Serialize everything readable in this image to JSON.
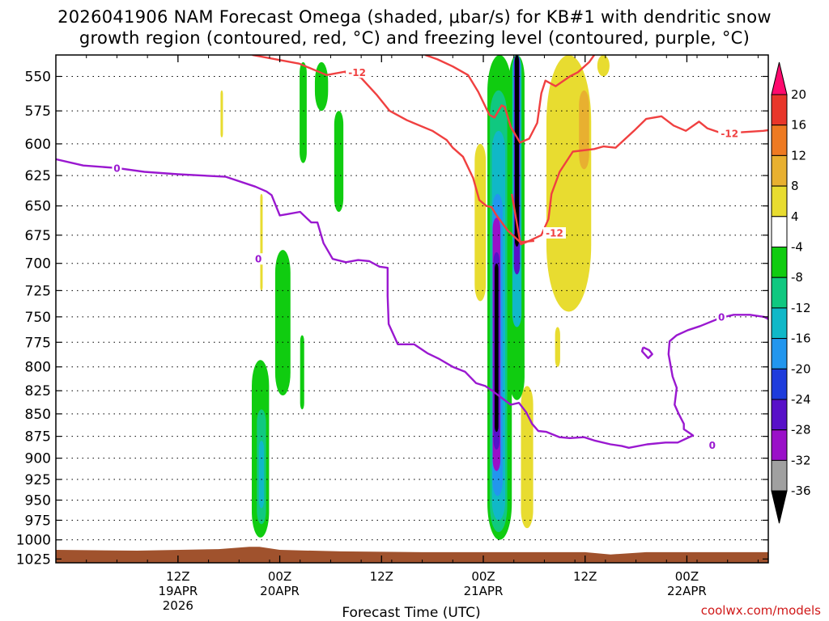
{
  "title": {
    "line1": "2026041906 NAM Forecast Omega (shaded, μbar/s) for KB#1 with dendritic snow",
    "line2": "growth region (contoured, red, °C) and freezing level (contoured, purple, °C)"
  },
  "credit": "coolwx.com/models",
  "chart_data": {
    "type": "heatmap",
    "title": "2026041906 NAM Forecast Omega (shaded, μbar/s) for KB#1 with dendritic snow growth region (contoured, red, °C) and freezing level (contoured, purple, °C)",
    "xlabel": "Forecast Time (UTC)",
    "ylabel": "",
    "x_range_hours": [
      -6,
      64
    ],
    "x_ticks": [
      {
        "hour": 6,
        "label": "12Z",
        "date": "19APR",
        "year": "2026"
      },
      {
        "hour": 16,
        "label": "00Z",
        "date": "20APR",
        "year": ""
      },
      {
        "hour": 26,
        "label": "12Z",
        "date": "",
        "year": ""
      },
      {
        "hour": 36,
        "label": "00Z",
        "date": "21APR",
        "year": ""
      },
      {
        "hour": 46,
        "label": "12Z",
        "date": "",
        "year": ""
      },
      {
        "hour": 56,
        "label": "00Z",
        "date": "22APR",
        "year": ""
      },
      {
        "hour": 66,
        "label": "12Z",
        "date": "",
        "year": ""
      }
    ],
    "x_minor_every_hours": 3,
    "y_range_mb": [
      1030,
      535
    ],
    "y_ticks": [
      550,
      575,
      600,
      625,
      650,
      675,
      700,
      725,
      750,
      775,
      800,
      825,
      850,
      875,
      900,
      925,
      950,
      975,
      1000,
      1025
    ],
    "colorbar": {
      "levels": [
        "20",
        "16",
        "12",
        "8",
        "4",
        "-4",
        "-8",
        "-12",
        "-16",
        "-20",
        "-24",
        "-28",
        "-32",
        "-36"
      ],
      "colors": [
        "#ff0a6e",
        "#e8362a",
        "#ee7a22",
        "#e8b030",
        "#e8dc30",
        "#ffffff",
        "#10cc10",
        "#10c880",
        "#10b8c8",
        "#2296ee",
        "#1e3cdc",
        "#5810c8",
        "#9a10c8",
        "#a0a0a0",
        "#000000"
      ]
    },
    "shading": [
      {
        "name": "ascent-a",
        "color": "#10cc10",
        "hour": 14.1,
        "p_top": 793,
        "p_bot": 997,
        "half_width_h": 0.85
      },
      {
        "name": "ascent-a-core",
        "color": "#10c880",
        "hour": 14.2,
        "p_top": 845,
        "p_bot": 980,
        "half_width_h": 0.45
      },
      {
        "name": "ascent-a-inner",
        "color": "#10b8c8",
        "hour": 14.2,
        "p_top": 880,
        "p_bot": 960,
        "half_width_h": 0.25
      },
      {
        "name": "ascent-b",
        "color": "#10cc10",
        "hour": 16.3,
        "p_top": 688,
        "p_bot": 830,
        "half_width_h": 0.75
      },
      {
        "name": "ascent-c",
        "color": "#10cc10",
        "hour": 18.2,
        "p_top": 768,
        "p_bot": 845,
        "half_width_h": 0.2
      },
      {
        "name": "ascent-d",
        "color": "#10cc10",
        "hour": 18.3,
        "p_top": 540,
        "p_bot": 615,
        "half_width_h": 0.35
      },
      {
        "name": "ascent-e",
        "color": "#10cc10",
        "hour": 20.1,
        "p_top": 540,
        "p_bot": 575,
        "half_width_h": 0.65
      },
      {
        "name": "ascent-f",
        "color": "#10cc10",
        "hour": 21.8,
        "p_top": 575,
        "p_bot": 655,
        "half_width_h": 0.45
      },
      {
        "name": "desc-g",
        "color": "#e8dc30",
        "hour": 10.3,
        "p_top": 560,
        "p_bot": 595,
        "half_width_h": 0.12
      },
      {
        "name": "desc-h",
        "color": "#e8dc30",
        "hour": 14.2,
        "p_top": 640,
        "p_bot": 725,
        "half_width_h": 0.12
      },
      {
        "name": "desc-i",
        "color": "#e8dc30",
        "hour": 35.7,
        "p_top": 600,
        "p_bot": 735,
        "half_width_h": 0.55
      },
      {
        "name": "desc-j",
        "color": "#e8dc30",
        "hour": 40.3,
        "p_top": 820,
        "p_bot": 985,
        "half_width_h": 0.6
      },
      {
        "name": "desc-k",
        "color": "#e8dc30",
        "hour": 43.3,
        "p_top": 760,
        "p_bot": 800,
        "half_width_h": 0.25
      },
      {
        "name": "desc-l",
        "color": "#e8dc30",
        "hour": 44.4,
        "p_top": 535,
        "p_bot": 745,
        "half_width_h": 2.2
      },
      {
        "name": "desc-m",
        "color": "#e8b030",
        "hour": 45.9,
        "p_top": 560,
        "p_bot": 620,
        "half_width_h": 0.5
      },
      {
        "name": "desc-n",
        "color": "#e8dc30",
        "hour": 47.8,
        "p_top": 535,
        "p_bot": 550,
        "half_width_h": 0.6
      },
      {
        "name": "core-green",
        "color": "#10cc10",
        "hour": 37.6,
        "p_top": 535,
        "p_bot": 1000,
        "half_width_h": 1.2
      },
      {
        "name": "core-teal",
        "color": "#10c880",
        "hour": 37.5,
        "p_top": 560,
        "p_bot": 990,
        "half_width_h": 0.85
      },
      {
        "name": "core-cyan",
        "color": "#10b8c8",
        "hour": 37.5,
        "p_top": 590,
        "p_bot": 975,
        "half_width_h": 0.65
      },
      {
        "name": "core-blue",
        "color": "#2296ee",
        "hour": 37.4,
        "p_top": 640,
        "p_bot": 945,
        "half_width_h": 0.5
      },
      {
        "name": "core-purple",
        "color": "#9a10c8",
        "hour": 37.3,
        "p_top": 660,
        "p_bot": 915,
        "half_width_h": 0.38
      },
      {
        "name": "core-violet",
        "color": "#5810c8",
        "hour": 37.3,
        "p_top": 690,
        "p_bot": 890,
        "half_width_h": 0.3
      },
      {
        "name": "core-black",
        "color": "#000000",
        "hour": 37.3,
        "p_top": 700,
        "p_bot": 870,
        "half_width_h": 0.18
      },
      {
        "name": "upper-green",
        "color": "#10cc10",
        "hour": 39.3,
        "p_top": 535,
        "p_bot": 835,
        "half_width_h": 0.75
      },
      {
        "name": "upper-cyan",
        "color": "#10b8c8",
        "hour": 39.3,
        "p_top": 535,
        "p_bot": 760,
        "half_width_h": 0.45
      },
      {
        "name": "upper-violet",
        "color": "#5810c8",
        "hour": 39.3,
        "p_top": 535,
        "p_bot": 710,
        "half_width_h": 0.3
      },
      {
        "name": "upper-black",
        "color": "#000000",
        "hour": 39.3,
        "p_top": 535,
        "p_bot": 685,
        "half_width_h": 0.2
      }
    ],
    "series": [
      {
        "name": "-12 °C isotherm (dendritic growth region)",
        "color": "#f04040",
        "label": "-12",
        "segments": [
          [
            [
              13.3,
              535
            ],
            [
              17.9,
              541
            ],
            [
              20.6,
              549
            ],
            [
              22.9,
              546
            ]
          ],
          [
            [
              22.4,
              547
            ],
            [
              24.0,
              551
            ],
            [
              25.5,
              563
            ],
            [
              26.8,
              575
            ],
            [
              28.5,
              582
            ],
            [
              31.0,
              590
            ],
            [
              32.4,
              597
            ],
            [
              33.0,
              603
            ],
            [
              34.0,
              610
            ],
            [
              35.0,
              627
            ],
            [
              35.6,
              645
            ],
            [
              36.3,
              650
            ],
            [
              36.8,
              651
            ],
            [
              37.3,
              658
            ],
            [
              38.4,
              671
            ],
            [
              39.6,
              681
            ],
            [
              41.0,
              680
            ]
          ],
          [
            [
              30.3,
              535
            ],
            [
              31.5,
              538
            ],
            [
              33.0,
              543
            ],
            [
              34.5,
              549
            ],
            [
              35.5,
              561
            ],
            [
              36.6,
              578
            ],
            [
              37.1,
              580
            ],
            [
              37.8,
              571
            ],
            [
              38.1,
              572
            ],
            [
              38.7,
              587
            ],
            [
              39.6,
              599
            ],
            [
              40.5,
              596
            ],
            [
              41.3,
              584
            ],
            [
              41.7,
              562
            ],
            [
              42.1,
              553
            ],
            [
              43.1,
              557
            ],
            [
              44.5,
              550
            ],
            [
              45.3,
              547
            ],
            [
              46.4,
              540
            ],
            [
              46.9,
              535
            ]
          ],
          [
            [
              38.8,
              640
            ],
            [
              39.3,
              665
            ],
            [
              39.6,
              680
            ],
            [
              39.7,
              683
            ],
            [
              40.5,
              680
            ],
            [
              41.7,
              675
            ],
            [
              42.4,
              661
            ],
            [
              42.7,
              640
            ],
            [
              43.5,
              622
            ],
            [
              44.8,
              606
            ],
            [
              46.9,
              604
            ],
            [
              47.8,
              602
            ],
            [
              49.0,
              603
            ],
            [
              50.8,
              590
            ],
            [
              52.0,
              581
            ],
            [
              53.5,
              579
            ],
            [
              54.7,
              586
            ],
            [
              55.9,
              590
            ],
            [
              57.2,
              583
            ],
            [
              58.0,
              588
            ],
            [
              59.5,
              592
            ],
            [
              61.5,
              591
            ],
            [
              63.5,
              590
            ],
            [
              65.5,
              588
            ],
            [
              67.5,
              583
            ],
            [
              69.0,
              578
            ],
            [
              70.0,
              577
            ],
            [
              71.3,
              567
            ],
            [
              72.5,
              559
            ],
            [
              74.0,
              553
            ]
          ]
        ]
      },
      {
        "name": "0 °C freezing level",
        "color": "#9a18d0",
        "label": "0",
        "segments": [
          [
            [
              -6.0,
              612
            ],
            [
              -3.3,
              617
            ],
            [
              0.0,
              619
            ],
            [
              2.7,
              622
            ],
            [
              6.0,
              624
            ],
            [
              10.7,
              626
            ],
            [
              13.6,
              634
            ],
            [
              14.7,
              638
            ],
            [
              15.2,
              641
            ],
            [
              16.0,
              658
            ],
            [
              16.7,
              657
            ],
            [
              18.0,
              655
            ],
            [
              19.1,
              664
            ],
            [
              19.7,
              664
            ],
            [
              20.3,
              682
            ],
            [
              21.2,
              696
            ],
            [
              22.5,
              699
            ],
            [
              23.7,
              697
            ],
            [
              24.8,
              698
            ],
            [
              25.8,
              703
            ],
            [
              26.6,
              704
            ],
            [
              26.6,
              730
            ],
            [
              26.7,
              757
            ],
            [
              27.6,
              777
            ],
            [
              29.2,
              777
            ],
            [
              30.5,
              786
            ],
            [
              31.7,
              792
            ],
            [
              33.0,
              800
            ],
            [
              34.2,
              805
            ],
            [
              35.3,
              817
            ],
            [
              36.2,
              820
            ],
            [
              37.0,
              826
            ],
            [
              38.7,
              840
            ],
            [
              39.5,
              838
            ],
            [
              40.2,
              848
            ],
            [
              40.8,
              861
            ],
            [
              41.4,
              869
            ],
            [
              42.2,
              870
            ],
            [
              43.5,
              876
            ],
            [
              44.5,
              877
            ],
            [
              45.9,
              876
            ],
            [
              47.0,
              880
            ],
            [
              48.5,
              884
            ],
            [
              49.6,
              886
            ],
            [
              50.3,
              888
            ],
            [
              52.1,
              884
            ],
            [
              53.9,
              882
            ],
            [
              55.1,
              882
            ],
            [
              56.6,
              874
            ],
            [
              55.7,
              867
            ],
            [
              55.7,
              861
            ],
            [
              55.2,
              850
            ],
            [
              54.8,
              840
            ],
            [
              55.0,
              822
            ],
            [
              54.6,
              810
            ],
            [
              54.2,
              787
            ],
            [
              54.3,
              774
            ],
            [
              55.0,
              768
            ],
            [
              56.1,
              763
            ],
            [
              57.3,
              759
            ],
            [
              59.3,
              751
            ],
            [
              60.6,
              748
            ],
            [
              62.2,
              748
            ],
            [
              63.6,
              750
            ],
            [
              65.1,
              758
            ],
            [
              66.3,
              764
            ],
            [
              67.7,
              766
            ],
            [
              69.5,
              754
            ],
            [
              71.0,
              741
            ],
            [
              72.1,
              728
            ],
            [
              73.0,
              725
            ],
            [
              74.0,
              725
            ]
          ],
          [
            [
              51.7,
              780
            ],
            [
              52.3,
              783
            ],
            [
              52.6,
              787
            ],
            [
              52.2,
              791
            ],
            [
              51.6,
              784
            ],
            [
              51.7,
              780
            ]
          ]
        ]
      },
      {
        "name": "terrain",
        "color": "#a0522d",
        "label": "",
        "values": [
          [
            -6.0,
            1013
          ],
          [
            2.0,
            1014
          ],
          [
            10.0,
            1012
          ],
          [
            13.0,
            1009
          ],
          [
            14.0,
            1009
          ],
          [
            16.0,
            1013
          ],
          [
            22.0,
            1015
          ],
          [
            30.0,
            1016
          ],
          [
            38.0,
            1016
          ],
          [
            46.0,
            1016
          ],
          [
            48.5,
            1019
          ],
          [
            52.0,
            1016
          ],
          [
            58.0,
            1016
          ],
          [
            66.0,
            1016
          ],
          [
            74.0,
            1014
          ]
        ]
      }
    ],
    "contour_labels": [
      {
        "text": "-12",
        "color": "#f04040",
        "hour": 23.6,
        "p": 547
      },
      {
        "text": "-12",
        "color": "#f04040",
        "hour": 43.0,
        "p": 673
      },
      {
        "text": "-12",
        "color": "#f04040",
        "hour": 60.2,
        "p": 592
      },
      {
        "text": "0",
        "color": "#9a18d0",
        "hour": 0.0,
        "p": 619
      },
      {
        "text": "0",
        "color": "#9a18d0",
        "hour": 13.9,
        "p": 696
      },
      {
        "text": "0",
        "color": "#9a18d0",
        "hour": 58.5,
        "p": 885
      },
      {
        "text": "0",
        "color": "#9a18d0",
        "hour": 59.4,
        "p": 750
      }
    ]
  }
}
